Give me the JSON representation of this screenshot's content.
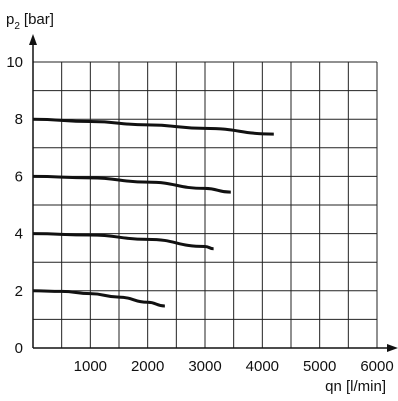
{
  "chart_data": {
    "type": "line",
    "xlabel": "qn [l/min]",
    "ylabel": {
      "base": "p",
      "subscript": "2",
      "unit": "[bar]"
    },
    "xlim": [
      0,
      6000
    ],
    "ylim": [
      0,
      10
    ],
    "x_ticks": [
      1000,
      2000,
      3000,
      4000,
      5000,
      6000
    ],
    "y_ticks": [
      0,
      2,
      4,
      6,
      8,
      10
    ],
    "grid": true,
    "x_grid_step": 500,
    "y_grid_step": 1,
    "series": [
      {
        "x": [
          0,
          500,
          1000,
          1500,
          2000,
          2300
        ],
        "y": [
          2.0,
          1.98,
          1.9,
          1.78,
          1.6,
          1.47
        ],
        "color": "#111111"
      },
      {
        "x": [
          0,
          1000,
          2000,
          3000,
          3150
        ],
        "y": [
          4.0,
          3.95,
          3.8,
          3.55,
          3.47
        ],
        "color": "#111111"
      },
      {
        "x": [
          0,
          1000,
          2000,
          3000,
          3450
        ],
        "y": [
          6.0,
          5.95,
          5.8,
          5.58,
          5.45
        ],
        "color": "#111111"
      },
      {
        "x": [
          0,
          1000,
          2000,
          3000,
          4200
        ],
        "y": [
          8.0,
          7.92,
          7.8,
          7.68,
          7.48
        ],
        "color": "#111111"
      }
    ]
  }
}
